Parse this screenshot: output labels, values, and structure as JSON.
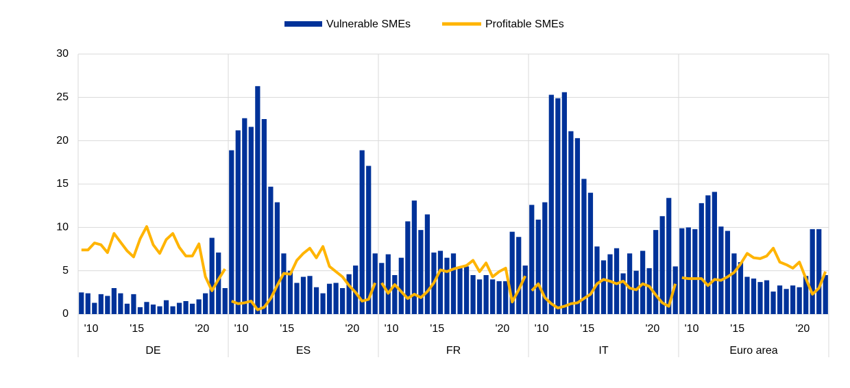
{
  "chart_data": {
    "type": "bar-line",
    "legend": [
      {
        "name": "Vulnerable SMEs",
        "color": "#003299",
        "kind": "bar"
      },
      {
        "name": "Profitable SMEs",
        "color": "#ffb400",
        "kind": "line"
      }
    ],
    "ylim": [
      0,
      30
    ],
    "yticks": [
      0,
      5,
      10,
      15,
      20,
      25,
      30
    ],
    "grid": true,
    "panels": [
      {
        "name": "DE",
        "categories": [
          null,
          null,
          "'10",
          null,
          null,
          null,
          null,
          null,
          null,
          "'15",
          null,
          null,
          null,
          null,
          null,
          null,
          null,
          null,
          null,
          "'20",
          null,
          null,
          null
        ],
        "bars": [
          2.5,
          2.4,
          1.3,
          2.3,
          2.1,
          3.0,
          2.4,
          1.2,
          2.3,
          0.8,
          1.4,
          1.1,
          0.9,
          1.6,
          0.9,
          1.3,
          1.5,
          1.2,
          1.7,
          2.4,
          8.8,
          7.1,
          3.0
        ],
        "line": [
          7.4,
          7.4,
          8.2,
          8.0,
          7.1,
          9.3,
          8.3,
          7.3,
          6.6,
          8.7,
          10.1,
          8.0,
          7.0,
          8.6,
          9.3,
          7.7,
          6.7,
          6.7,
          8.1,
          4.3,
          2.7,
          4.0,
          5.2
        ]
      },
      {
        "name": "ES",
        "categories": [
          null,
          null,
          "'10",
          null,
          null,
          null,
          null,
          null,
          null,
          "'15",
          null,
          null,
          null,
          null,
          null,
          null,
          null,
          null,
          null,
          "'20",
          null,
          null,
          null
        ],
        "bars": [
          18.9,
          21.2,
          22.6,
          21.6,
          26.3,
          22.5,
          14.7,
          12.9,
          7.0,
          5.0,
          3.6,
          4.3,
          4.4,
          3.1,
          2.4,
          3.5,
          3.6,
          3.0,
          4.6,
          5.6,
          18.9,
          17.1,
          7.0
        ],
        "line": [
          1.5,
          1.2,
          1.3,
          1.5,
          0.5,
          0.8,
          1.8,
          3.3,
          4.7,
          4.6,
          6.2,
          7.0,
          7.6,
          6.5,
          7.8,
          5.5,
          4.9,
          4.3,
          3.3,
          2.5,
          1.5,
          1.7,
          3.6
        ]
      },
      {
        "name": "FR",
        "categories": [
          null,
          null,
          "'10",
          null,
          null,
          null,
          null,
          null,
          null,
          "'15",
          null,
          null,
          null,
          null,
          null,
          null,
          null,
          null,
          null,
          "'20",
          null,
          null,
          null
        ],
        "bars": [
          5.9,
          6.9,
          4.5,
          6.5,
          10.7,
          13.1,
          9.7,
          11.5,
          7.1,
          7.3,
          6.5,
          7.0,
          5.3,
          5.5,
          4.5,
          4.0,
          4.5,
          4.0,
          3.8,
          3.8,
          9.5,
          8.9,
          5.6
        ],
        "line": [
          3.6,
          2.4,
          3.4,
          2.6,
          1.8,
          2.3,
          1.9,
          2.6,
          3.6,
          5.1,
          4.9,
          5.2,
          5.4,
          5.6,
          6.2,
          4.9,
          5.9,
          4.3,
          4.9,
          5.3,
          1.4,
          2.8,
          4.4
        ]
      },
      {
        "name": "IT",
        "categories": [
          null,
          null,
          "'10",
          null,
          null,
          null,
          null,
          null,
          null,
          "'15",
          null,
          null,
          null,
          null,
          null,
          null,
          null,
          null,
          null,
          "'20",
          null,
          null,
          null
        ],
        "bars": [
          12.6,
          10.9,
          12.9,
          25.3,
          24.9,
          25.6,
          21.1,
          20.3,
          15.6,
          14.0,
          7.8,
          6.2,
          6.9,
          7.6,
          4.7,
          7.0,
          5.0,
          7.3,
          5.3,
          9.7,
          11.3,
          13.4,
          5.5
        ],
        "line": [
          2.7,
          3.5,
          1.9,
          1.2,
          0.7,
          0.9,
          1.2,
          1.3,
          1.8,
          2.3,
          3.5,
          4.0,
          3.8,
          3.5,
          3.8,
          3.0,
          2.8,
          3.5,
          3.2,
          2.2,
          1.3,
          0.9,
          3.5
        ]
      },
      {
        "name": "Euro area",
        "categories": [
          null,
          null,
          "'10",
          null,
          null,
          null,
          null,
          null,
          null,
          "'15",
          null,
          null,
          null,
          null,
          null,
          null,
          null,
          null,
          null,
          "'20",
          null,
          null,
          null
        ],
        "bars": [
          9.9,
          10.0,
          9.8,
          12.8,
          13.7,
          14.1,
          10.1,
          9.6,
          7.0,
          6.0,
          4.3,
          4.1,
          3.7,
          3.9,
          2.6,
          3.3,
          2.9,
          3.3,
          3.1,
          4.4,
          9.8,
          9.8,
          4.5
        ],
        "line": [
          4.2,
          4.1,
          4.1,
          4.1,
          3.3,
          4.0,
          3.9,
          4.3,
          4.8,
          5.8,
          7.0,
          6.5,
          6.4,
          6.7,
          7.6,
          6.0,
          5.7,
          5.3,
          6.0,
          4.1,
          2.3,
          3.0,
          4.9
        ]
      }
    ]
  }
}
